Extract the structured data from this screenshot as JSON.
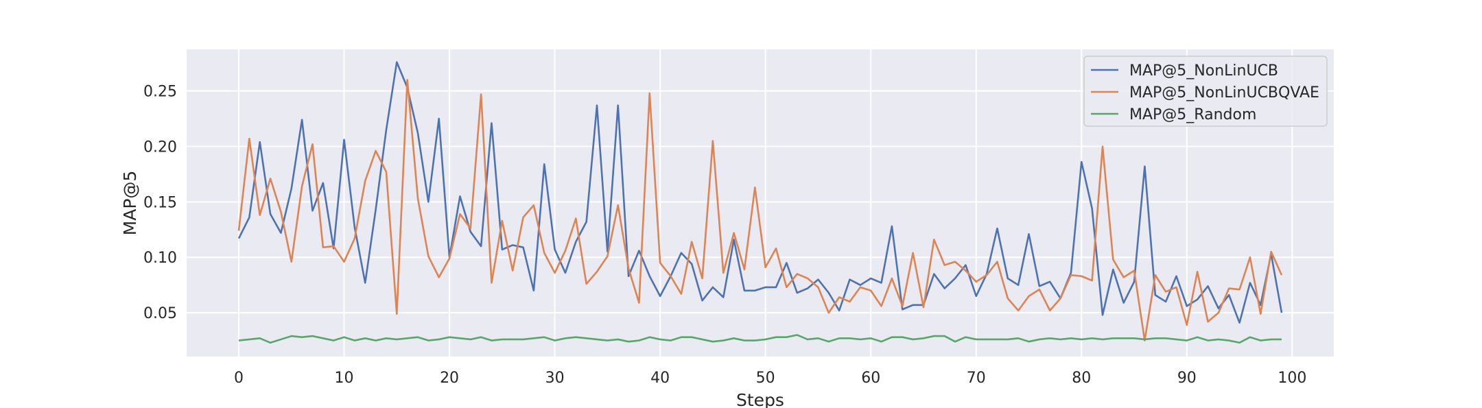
{
  "chart_data": {
    "type": "line",
    "title": "",
    "xlabel": "Steps",
    "ylabel": "MAP@5",
    "xlim": [
      -4.95,
      103.95
    ],
    "ylim": [
      0.0105,
      0.2875
    ],
    "xticks": [
      0,
      10,
      20,
      30,
      40,
      50,
      60,
      70,
      80,
      90,
      100
    ],
    "yticks": [
      0.05,
      0.1,
      0.15,
      0.2,
      0.25
    ],
    "ytick_labels": [
      "0.05",
      "0.10",
      "0.15",
      "0.20",
      "0.25"
    ],
    "grid": true,
    "legend_position": "top-right",
    "x": [
      0,
      1,
      2,
      3,
      4,
      5,
      6,
      7,
      8,
      9,
      10,
      11,
      12,
      13,
      14,
      15,
      16,
      17,
      18,
      19,
      20,
      21,
      22,
      23,
      24,
      25,
      26,
      27,
      28,
      29,
      30,
      31,
      32,
      33,
      34,
      35,
      36,
      37,
      38,
      39,
      40,
      41,
      42,
      43,
      44,
      45,
      46,
      47,
      48,
      49,
      50,
      51,
      52,
      53,
      54,
      55,
      56,
      57,
      58,
      59,
      60,
      61,
      62,
      63,
      64,
      65,
      66,
      67,
      68,
      69,
      70,
      71,
      72,
      73,
      74,
      75,
      76,
      77,
      78,
      79,
      80,
      81,
      82,
      83,
      84,
      85,
      86,
      87,
      88,
      89,
      90,
      91,
      92,
      93,
      94,
      95,
      96,
      97,
      98,
      99
    ],
    "series": [
      {
        "name": "MAP@5_NonLinUCB",
        "color": "#4c72b0",
        "values": [
          0.117,
          0.136,
          0.204,
          0.139,
          0.122,
          0.162,
          0.224,
          0.142,
          0.167,
          0.108,
          0.206,
          0.127,
          0.077,
          0.143,
          0.215,
          0.276,
          0.253,
          0.212,
          0.15,
          0.225,
          0.1,
          0.155,
          0.123,
          0.11,
          0.221,
          0.107,
          0.111,
          0.109,
          0.07,
          0.184,
          0.107,
          0.086,
          0.114,
          0.132,
          0.237,
          0.105,
          0.237,
          0.083,
          0.106,
          0.083,
          0.065,
          0.083,
          0.104,
          0.094,
          0.061,
          0.073,
          0.064,
          0.116,
          0.07,
          0.07,
          0.073,
          0.073,
          0.095,
          0.068,
          0.072,
          0.08,
          0.068,
          0.052,
          0.08,
          0.075,
          0.081,
          0.077,
          0.128,
          0.053,
          0.057,
          0.057,
          0.085,
          0.072,
          0.081,
          0.093,
          0.065,
          0.085,
          0.126,
          0.081,
          0.075,
          0.121,
          0.074,
          0.078,
          0.063,
          0.086,
          0.186,
          0.144,
          0.048,
          0.089,
          0.059,
          0.078,
          0.182,
          0.066,
          0.06,
          0.083,
          0.056,
          0.062,
          0.074,
          0.054,
          0.066,
          0.041,
          0.077,
          0.057,
          0.103,
          0.05
        ]
      },
      {
        "name": "MAP@5_NonLinUCBQVAE",
        "color": "#dd8452",
        "values": [
          0.124,
          0.207,
          0.138,
          0.171,
          0.141,
          0.096,
          0.164,
          0.202,
          0.109,
          0.11,
          0.096,
          0.117,
          0.169,
          0.196,
          0.177,
          0.049,
          0.26,
          0.153,
          0.101,
          0.082,
          0.099,
          0.139,
          0.126,
          0.247,
          0.077,
          0.133,
          0.088,
          0.136,
          0.147,
          0.104,
          0.086,
          0.106,
          0.135,
          0.076,
          0.087,
          0.101,
          0.147,
          0.09,
          0.059,
          0.248,
          0.095,
          0.083,
          0.067,
          0.114,
          0.081,
          0.205,
          0.086,
          0.122,
          0.089,
          0.163,
          0.091,
          0.108,
          0.073,
          0.085,
          0.081,
          0.073,
          0.05,
          0.064,
          0.06,
          0.073,
          0.07,
          0.056,
          0.081,
          0.056,
          0.104,
          0.055,
          0.116,
          0.093,
          0.096,
          0.088,
          0.078,
          0.084,
          0.096,
          0.063,
          0.052,
          0.065,
          0.071,
          0.052,
          0.063,
          0.084,
          0.083,
          0.079,
          0.2,
          0.098,
          0.082,
          0.088,
          0.025,
          0.084,
          0.069,
          0.073,
          0.039,
          0.087,
          0.042,
          0.05,
          0.072,
          0.071,
          0.1,
          0.049,
          0.105,
          0.084
        ]
      },
      {
        "name": "MAP@5_Random",
        "color": "#55a868",
        "values": [
          0.025,
          0.026,
          0.027,
          0.023,
          0.026,
          0.029,
          0.028,
          0.029,
          0.027,
          0.025,
          0.028,
          0.025,
          0.027,
          0.025,
          0.027,
          0.026,
          0.027,
          0.028,
          0.025,
          0.026,
          0.028,
          0.027,
          0.026,
          0.028,
          0.025,
          0.026,
          0.026,
          0.026,
          0.027,
          0.028,
          0.025,
          0.027,
          0.028,
          0.027,
          0.026,
          0.025,
          0.026,
          0.024,
          0.025,
          0.028,
          0.026,
          0.025,
          0.028,
          0.028,
          0.026,
          0.024,
          0.025,
          0.027,
          0.025,
          0.025,
          0.026,
          0.028,
          0.028,
          0.03,
          0.026,
          0.027,
          0.024,
          0.027,
          0.027,
          0.026,
          0.027,
          0.024,
          0.028,
          0.028,
          0.026,
          0.027,
          0.029,
          0.029,
          0.024,
          0.028,
          0.026,
          0.026,
          0.026,
          0.026,
          0.027,
          0.024,
          0.026,
          0.027,
          0.026,
          0.027,
          0.026,
          0.027,
          0.026,
          0.027,
          0.027,
          0.027,
          0.026,
          0.027,
          0.027,
          0.026,
          0.025,
          0.028,
          0.025,
          0.026,
          0.025,
          0.023,
          0.028,
          0.025,
          0.026,
          0.026
        ]
      }
    ]
  }
}
